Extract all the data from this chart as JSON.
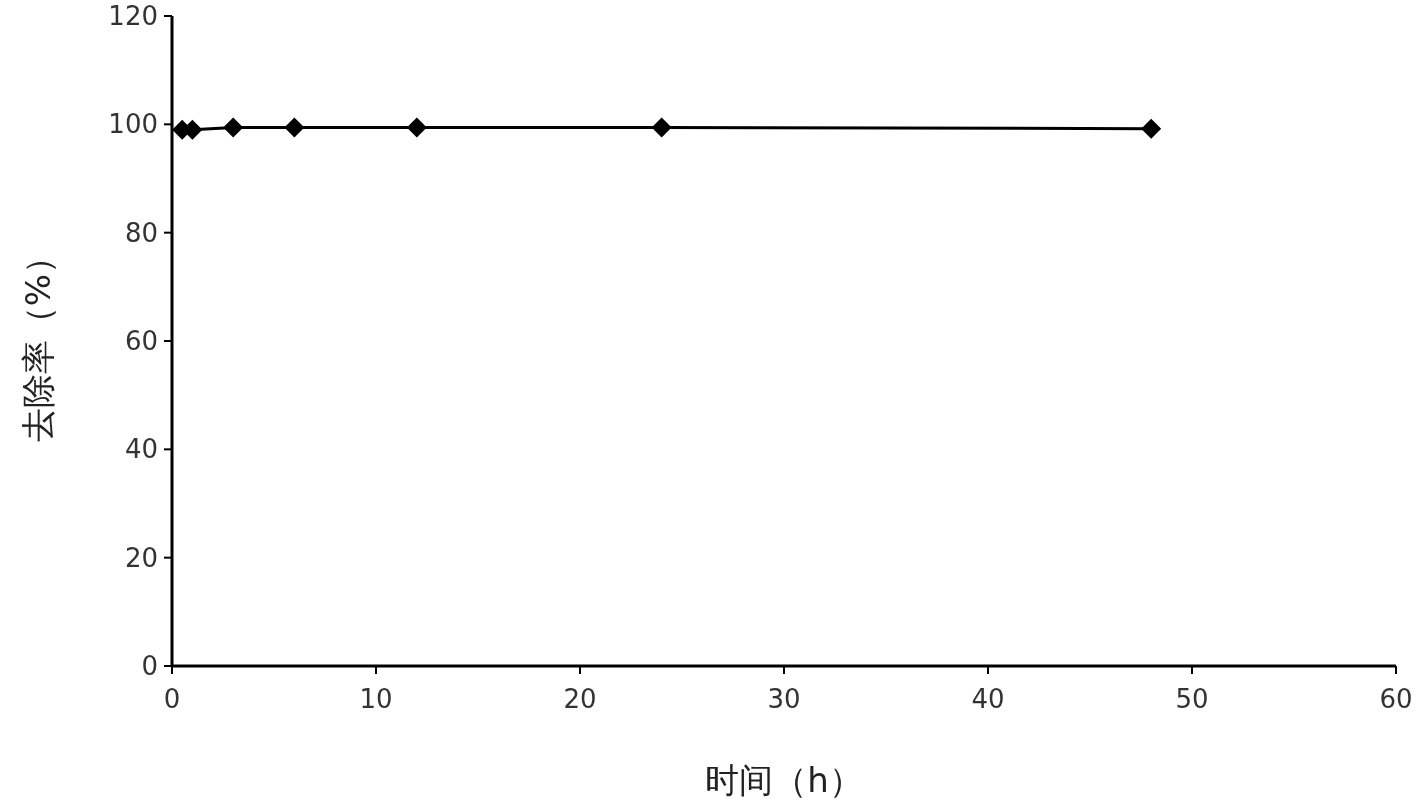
{
  "chart_data": {
    "type": "line",
    "xlabel": "时间（h）",
    "ylabel": "去除率（%）",
    "x": [
      0.5,
      1,
      3,
      6,
      12,
      24,
      48
    ],
    "series": [
      {
        "color": "#000000",
        "values": [
          99,
          99,
          99.4,
          99.4,
          99.4,
          99.4,
          99.2
        ]
      }
    ],
    "xlim": [
      0,
      60
    ],
    "ylim": [
      0,
      120
    ],
    "xticks": [
      0,
      10,
      20,
      30,
      40,
      50,
      60
    ],
    "yticks": [
      0,
      20,
      40,
      60,
      80,
      100,
      120
    ],
    "marker": "diamond",
    "line_style": "solid",
    "grid": false
  }
}
